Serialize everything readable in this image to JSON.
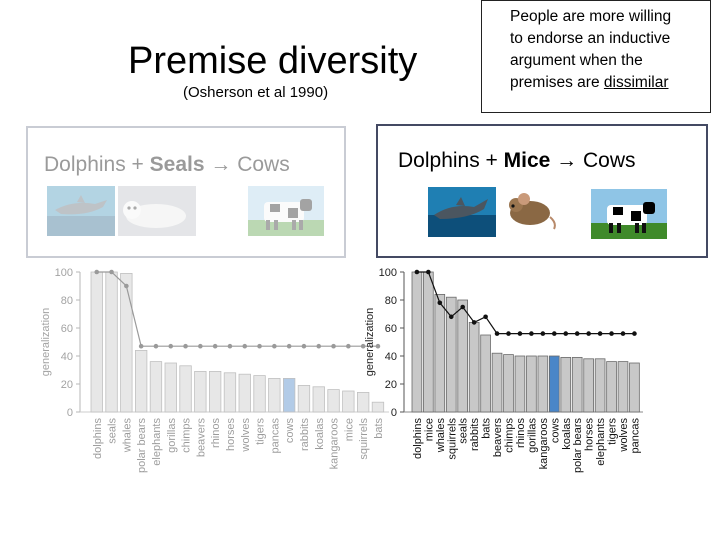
{
  "slide": {
    "title": "Premise diversity",
    "citation": "(Osherson et al 1990)",
    "note": {
      "lines": [
        "People are more willing",
        "to endorse an inductive",
        "argument when the"
      ],
      "last_prefix": "premises are ",
      "last_underlined": "dissimilar"
    },
    "left_heading": {
      "prefix": "Dolphins + ",
      "bold": "Seals",
      "suffix": " → Cows"
    },
    "right_heading": {
      "prefix": "Dolphins + ",
      "bold": "Mice",
      "suffix": " → Cows"
    },
    "colors": {
      "human_bar": "#c8c8c8",
      "target_bar": "#4a86c8",
      "model_line": "#111111",
      "left_frame": "#c9ccd4",
      "right_frame": "#444a63"
    }
  },
  "chart_data": [
    {
      "type": "bar",
      "ylabel": "generalization",
      "ylim": [
        0,
        100
      ],
      "yticks": [
        0,
        20,
        40,
        60,
        80,
        100
      ],
      "categories": [
        "dolphins",
        "seals",
        "whales",
        "polar bears",
        "elephants",
        "gorillas",
        "chimps",
        "beavers",
        "rhinos",
        "horses",
        "wolves",
        "tigers",
        "pancas",
        "cows",
        "rabbits",
        "koalas",
        "kangaroos",
        "mice",
        "squirrels",
        "bats"
      ],
      "highlight": "cows",
      "series": [
        {
          "kind": "bars",
          "values": [
            100,
            100,
            99,
            44,
            36,
            35,
            33,
            29,
            29,
            28,
            27,
            26,
            24,
            24,
            19,
            18,
            16,
            15,
            14,
            7
          ]
        },
        {
          "kind": "line",
          "values": [
            100,
            100,
            90,
            47,
            47,
            47,
            47,
            47,
            47,
            47,
            47,
            47,
            47,
            47,
            47,
            47,
            47,
            47,
            47,
            47
          ]
        }
      ]
    },
    {
      "type": "bar",
      "ylabel": "generalization",
      "ylim": [
        0,
        100
      ],
      "yticks": [
        0,
        20,
        40,
        60,
        80,
        100
      ],
      "categories": [
        "dolphins",
        "mice",
        "whales",
        "squirrels",
        "seals",
        "rabbits",
        "bats",
        "beavers",
        "chimps",
        "rhinos",
        "gorillas",
        "kangaroos",
        "cows",
        "koalas",
        "polar bears",
        "horses",
        "elephants",
        "tigers",
        "wolves",
        "pancas"
      ],
      "highlight": "cows",
      "series": [
        {
          "kind": "bars",
          "values": [
            100,
            100,
            84,
            82,
            80,
            64,
            55,
            42,
            41,
            40,
            40,
            40,
            40,
            39,
            39,
            38,
            38,
            36,
            36,
            35
          ]
        },
        {
          "kind": "line",
          "values": [
            100,
            100,
            78,
            68,
            75,
            64,
            68,
            56,
            56,
            56,
            56,
            56,
            56,
            56,
            56,
            56,
            56,
            56,
            56,
            56
          ]
        }
      ]
    }
  ]
}
